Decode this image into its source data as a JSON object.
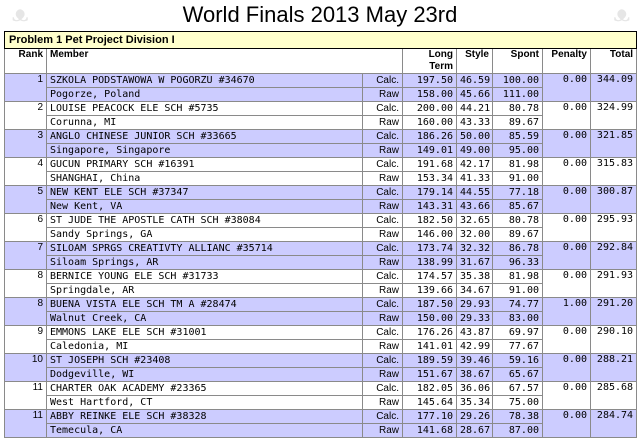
{
  "title": "World Finals 2013 May 23rd",
  "problem": "Problem 1 Pet Project Division I",
  "headers": {
    "rank": "Rank",
    "member": "Member",
    "long_term": "Long Term",
    "style": "Style",
    "spont": "Spont",
    "penalty": "Penalty",
    "total": "Total"
  },
  "type_labels": {
    "calc": "Calc.",
    "raw": "Raw"
  },
  "rows": [
    {
      "rank": "1",
      "name": "SZKOLA PODSTAWOWA W POGORZU #34670",
      "loc": "Pogorze, Poland",
      "calc": [
        "197.50",
        "46.59",
        "100.00",
        "0.00",
        "344.09"
      ],
      "raw": [
        "158.00",
        "45.66",
        "111.00"
      ]
    },
    {
      "rank": "2",
      "name": "LOUISE PEACOCK ELE SCH #5735",
      "loc": "Corunna, MI",
      "calc": [
        "200.00",
        "44.21",
        "80.78",
        "0.00",
        "324.99"
      ],
      "raw": [
        "160.00",
        "43.33",
        "89.67"
      ]
    },
    {
      "rank": "3",
      "name": "ANGLO CHINESE JUNIOR SCH #33665",
      "loc": "Singapore, Singapore",
      "calc": [
        "186.26",
        "50.00",
        "85.59",
        "0.00",
        "321.85"
      ],
      "raw": [
        "149.01",
        "49.00",
        "95.00"
      ]
    },
    {
      "rank": "4",
      "name": "GUCUN PRIMARY SCH #16391",
      "loc": "SHANGHAI, China",
      "calc": [
        "191.68",
        "42.17",
        "81.98",
        "0.00",
        "315.83"
      ],
      "raw": [
        "153.34",
        "41.33",
        "91.00"
      ]
    },
    {
      "rank": "5",
      "name": "NEW KENT ELE SCH #37347",
      "loc": "New Kent, VA",
      "calc": [
        "179.14",
        "44.55",
        "77.18",
        "0.00",
        "300.87"
      ],
      "raw": [
        "143.31",
        "43.66",
        "85.67"
      ]
    },
    {
      "rank": "6",
      "name": "ST JUDE THE APOSTLE CATH SCH #38084",
      "loc": "Sandy Springs, GA",
      "calc": [
        "182.50",
        "32.65",
        "80.78",
        "0.00",
        "295.93"
      ],
      "raw": [
        "146.00",
        "32.00",
        "89.67"
      ]
    },
    {
      "rank": "7",
      "name": "SILOAM SPRGS CREATIVTY ALLIANC #35714",
      "loc": "Siloam Springs, AR",
      "calc": [
        "173.74",
        "32.32",
        "86.78",
        "0.00",
        "292.84"
      ],
      "raw": [
        "138.99",
        "31.67",
        "96.33"
      ]
    },
    {
      "rank": "8",
      "name": "BERNICE YOUNG ELE SCH #31733",
      "loc": "Springdale, AR",
      "calc": [
        "174.57",
        "35.38",
        "81.98",
        "0.00",
        "291.93"
      ],
      "raw": [
        "139.66",
        "34.67",
        "91.00"
      ]
    },
    {
      "rank": "8",
      "name": "BUENA VISTA ELE SCH TM A #28474",
      "loc": "Walnut Creek, CA",
      "calc": [
        "187.50",
        "29.93",
        "74.77",
        "1.00",
        "291.20"
      ],
      "raw": [
        "150.00",
        "29.33",
        "83.00"
      ]
    },
    {
      "rank": "9",
      "name": "EMMONS LAKE ELE SCH #31001",
      "loc": "Caledonia, MI",
      "calc": [
        "176.26",
        "43.87",
        "69.97",
        "0.00",
        "290.10"
      ],
      "raw": [
        "141.01",
        "42.99",
        "77.67"
      ]
    },
    {
      "rank": "10",
      "name": "ST JOSEPH SCH #23408",
      "loc": "Dodgeville, WI",
      "calc": [
        "189.59",
        "39.46",
        "59.16",
        "0.00",
        "288.21"
      ],
      "raw": [
        "151.67",
        "38.67",
        "65.67"
      ]
    },
    {
      "rank": "11",
      "name": "CHARTER OAK ACADEMY #23365",
      "loc": "West Hartford, CT",
      "calc": [
        "182.05",
        "36.06",
        "67.57",
        "0.00",
        "285.68"
      ],
      "raw": [
        "145.64",
        "35.34",
        "75.00"
      ]
    },
    {
      "rank": "11",
      "name": "ABBY REINKE ELE SCH #38328",
      "loc": "Temecula, CA",
      "calc": [
        "177.10",
        "29.26",
        "78.38",
        "0.00",
        "284.74"
      ],
      "raw": [
        "141.68",
        "28.67",
        "87.00"
      ]
    }
  ],
  "colors": {
    "row_highlight": "#ccccff",
    "problem_bg": "#ffffcc"
  }
}
